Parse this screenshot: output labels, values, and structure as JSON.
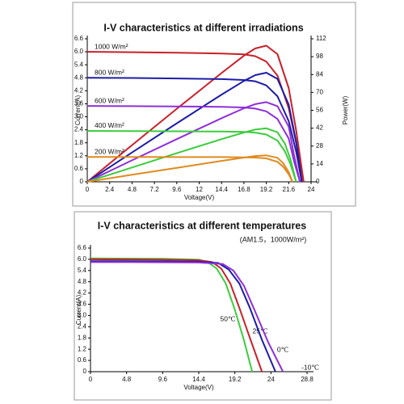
{
  "chart_data": [
    {
      "type": "line",
      "title": "I-V characteristics at different irradiations",
      "ylabel": "Current(A)",
      "xlabel": "Voltage(V)",
      "y2label": "Power(W)",
      "xlim": [
        0,
        24
      ],
      "xticks": [
        0,
        2.4,
        4.8,
        7.2,
        9.6,
        12,
        14.4,
        16.8,
        19.2,
        21.6,
        24
      ],
      "ylim": [
        0,
        6.6
      ],
      "yticks": [
        0,
        0.6,
        1.2,
        1.8,
        2.4,
        {
          "value": 3,
          "label": "3.0"
        },
        3.6,
        4.2,
        4.8,
        5.4,
        {
          "value": 6,
          "label": "6.0"
        },
        6.6
      ],
      "y2lim": [
        0,
        112
      ],
      "y2ticks": [
        0,
        14,
        28,
        42,
        56,
        70,
        84,
        98,
        112
      ],
      "grid": false,
      "series": [
        {
          "name": "1000 W/m²",
          "color": "#c8202a",
          "x": [
            0,
            4.8,
            9.6,
            14.4,
            16.8,
            18,
            19.2,
            20.4,
            21.6,
            22.4,
            23.2
          ],
          "values": [
            6.0,
            5.98,
            5.96,
            5.92,
            5.88,
            5.8,
            5.55,
            4.9,
            3.4,
            1.8,
            0
          ],
          "power": [
            0,
            28.7,
            57.2,
            85.2,
            98.8,
            104.4,
            106.6,
            100,
            73.4,
            40.3,
            0
          ]
        },
        {
          "name": "800 W/m²",
          "color": "#1c1ca8",
          "x": [
            0,
            4.8,
            9.6,
            14.4,
            16.8,
            18,
            19.2,
            20.4,
            21.6,
            22.4,
            23.0
          ],
          "values": [
            4.8,
            4.79,
            4.77,
            4.74,
            4.7,
            4.64,
            4.45,
            3.95,
            2.8,
            1.4,
            0
          ],
          "power": [
            0,
            23.0,
            45.8,
            68.3,
            79.0,
            83.5,
            85.4,
            80.6,
            60.5,
            31.4,
            0
          ]
        },
        {
          "name": "600 W/m²",
          "color": "#8e2fd8",
          "x": [
            0,
            4.8,
            9.6,
            14.4,
            16.8,
            18,
            19.2,
            20.4,
            21.6,
            22.2,
            22.8
          ],
          "values": [
            3.5,
            3.49,
            3.48,
            3.46,
            3.43,
            3.38,
            3.25,
            2.9,
            2.0,
            0.9,
            0
          ],
          "power": [
            0,
            16.8,
            33.4,
            49.8,
            57.6,
            60.8,
            62.4,
            59.2,
            43.2,
            20.0,
            0
          ]
        },
        {
          "name": "400 W/m²",
          "color": "#3ccc3c",
          "x": [
            0,
            4.8,
            9.6,
            14.4,
            16.8,
            18,
            19.2,
            20.4,
            21.2,
            21.8,
            22.4
          ],
          "values": [
            2.35,
            2.34,
            2.33,
            2.32,
            2.3,
            2.27,
            2.18,
            1.9,
            1.4,
            0.8,
            0
          ],
          "power": [
            0,
            11.2,
            22.4,
            33.4,
            38.6,
            40.9,
            41.9,
            38.8,
            29.7,
            17.4,
            0
          ]
        },
        {
          "name": "200 W/m²",
          "color": "#e08a1e",
          "x": [
            0,
            4.8,
            9.6,
            14.4,
            16.8,
            18,
            19.2,
            20.4,
            21.0,
            21.6,
            22.0
          ],
          "values": [
            1.15,
            1.15,
            1.14,
            1.14,
            1.13,
            1.12,
            1.08,
            0.92,
            0.7,
            0.35,
            0
          ],
          "power": [
            0,
            5.5,
            10.9,
            16.4,
            19.0,
            20.2,
            20.7,
            18.8,
            14.7,
            7.6,
            0
          ]
        }
      ]
    },
    {
      "type": "line",
      "title": "I-V characteristics at different temperatures",
      "subtitle": "(AM1.5，1000W/m²)",
      "ylabel": "Current(A)",
      "xlabel": "Voltage(V)",
      "xlim": [
        0,
        28.8
      ],
      "xticks": [
        0,
        4.8,
        9.6,
        14.4,
        19.2,
        24,
        28.8
      ],
      "ylim": [
        0,
        6.6
      ],
      "yticks": [
        0,
        0.6,
        1.2,
        1.8,
        2.4,
        {
          "value": 3,
          "label": "3.0"
        },
        3.6,
        4.2,
        4.8,
        5.4,
        {
          "value": 6,
          "label": "6.0"
        },
        6.6
      ],
      "grid": false,
      "series": [
        {
          "name": "50℃",
          "color": "#3ccc3c",
          "x": [
            0,
            4.8,
            9.6,
            14.4,
            15.6,
            16.8,
            18,
            19.2,
            20.4,
            21.5
          ],
          "values": [
            6.05,
            6.04,
            6.03,
            5.98,
            5.85,
            5.5,
            4.7,
            3.3,
            1.7,
            0
          ]
        },
        {
          "name": "25℃",
          "color": "#c8202a",
          "x": [
            0,
            4.8,
            9.6,
            14.4,
            16.2,
            17.4,
            18.6,
            19.8,
            21.2,
            22.8
          ],
          "values": [
            6.0,
            5.99,
            5.98,
            5.95,
            5.85,
            5.5,
            4.7,
            3.4,
            1.8,
            0
          ]
        },
        {
          "name": "0℃",
          "color": "#1c1ca8",
          "x": [
            0,
            4.8,
            9.6,
            14.4,
            17.0,
            18.4,
            19.8,
            21.2,
            22.8,
            24.6
          ],
          "values": [
            5.9,
            5.9,
            5.89,
            5.87,
            5.8,
            5.45,
            4.7,
            3.4,
            1.7,
            0
          ]
        },
        {
          "name": "-10℃",
          "color": "#8e2fd8",
          "x": [
            0,
            4.8,
            9.6,
            14.4,
            17.6,
            19.0,
            20.4,
            21.8,
            23.6,
            25.6
          ],
          "values": [
            5.85,
            5.85,
            5.84,
            5.83,
            5.75,
            5.4,
            4.6,
            3.3,
            1.6,
            0
          ]
        }
      ]
    }
  ]
}
